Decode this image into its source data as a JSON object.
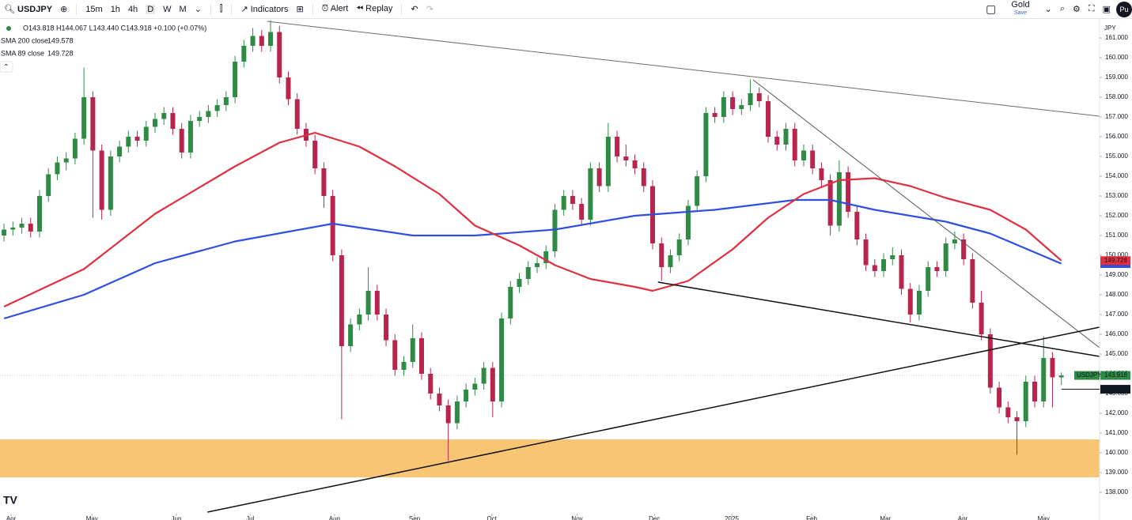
{
  "toolbar": {
    "symbol": "USDJPY",
    "intervals": [
      "15m",
      "1h",
      "4h",
      "D",
      "W",
      "M"
    ],
    "indicators": "Indicators",
    "alert": "Alert",
    "replay": "Replay",
    "layout_name": "Gold",
    "save": "Save",
    "avatar": "Pu"
  },
  "chart_data": {
    "type": "candlestick",
    "legend_ohlc": "O143.818 H144.067 L143.440 C143.918 +0.100 (+0.07%)",
    "currency": "JPY",
    "up_color": "#2e8b45",
    "down_color": "#b7254d",
    "candles": [
      [
        151.0,
        151.6,
        150.7,
        151.3
      ],
      [
        151.3,
        151.7,
        151.0,
        151.4
      ],
      [
        151.4,
        151.9,
        151.1,
        151.6
      ],
      [
        151.6,
        151.9,
        150.9,
        151.2
      ],
      [
        151.2,
        153.3,
        150.9,
        153.0
      ],
      [
        153.0,
        154.4,
        152.7,
        154.1
      ],
      [
        154.1,
        155.0,
        153.8,
        154.7
      ],
      [
        154.7,
        155.2,
        154.3,
        154.9
      ],
      [
        154.9,
        156.2,
        154.6,
        155.9
      ],
      [
        155.9,
        159.5,
        155.6,
        158.0
      ],
      [
        158.0,
        158.3,
        151.9,
        155.3
      ],
      [
        155.3,
        155.6,
        151.8,
        152.3
      ],
      [
        152.3,
        155.3,
        152.0,
        155.0
      ],
      [
        155.0,
        155.8,
        154.7,
        155.5
      ],
      [
        155.5,
        156.3,
        155.2,
        156.0
      ],
      [
        156.0,
        156.3,
        155.5,
        155.8
      ],
      [
        155.8,
        156.8,
        155.5,
        156.5
      ],
      [
        156.5,
        157.2,
        156.2,
        156.9
      ],
      [
        156.9,
        157.5,
        156.6,
        157.2
      ],
      [
        157.2,
        157.5,
        156.1,
        156.4
      ],
      [
        156.4,
        156.7,
        154.9,
        155.2
      ],
      [
        155.2,
        157.1,
        154.9,
        156.8
      ],
      [
        156.8,
        157.3,
        156.5,
        157.0
      ],
      [
        157.0,
        157.6,
        156.7,
        157.3
      ],
      [
        157.3,
        157.9,
        157.0,
        157.6
      ],
      [
        157.6,
        158.3,
        157.3,
        158.0
      ],
      [
        158.0,
        160.1,
        157.7,
        159.8
      ],
      [
        159.8,
        160.9,
        159.5,
        160.6
      ],
      [
        160.6,
        161.5,
        160.3,
        161.1
      ],
      [
        161.1,
        161.4,
        160.3,
        160.6
      ],
      [
        160.6,
        161.9,
        160.3,
        161.3
      ],
      [
        161.3,
        161.6,
        158.7,
        159.0
      ],
      [
        159.0,
        159.3,
        157.6,
        157.9
      ],
      [
        157.9,
        158.2,
        156.1,
        156.4
      ],
      [
        156.4,
        156.7,
        155.5,
        155.8
      ],
      [
        155.8,
        156.1,
        154.1,
        154.4
      ],
      [
        154.4,
        154.7,
        152.4,
        153.0
      ],
      [
        153.0,
        153.3,
        149.7,
        150.0
      ],
      [
        150.0,
        150.3,
        141.7,
        145.4
      ],
      [
        145.4,
        146.8,
        145.1,
        146.5
      ],
      [
        146.5,
        147.3,
        146.2,
        147.0
      ],
      [
        147.0,
        149.4,
        146.7,
        148.2
      ],
      [
        148.2,
        148.5,
        146.7,
        147.0
      ],
      [
        147.0,
        147.3,
        145.4,
        145.7
      ],
      [
        145.7,
        146.0,
        143.9,
        144.2
      ],
      [
        144.2,
        144.9,
        143.9,
        144.6
      ],
      [
        144.6,
        146.5,
        144.3,
        145.8
      ],
      [
        145.8,
        146.1,
        143.7,
        144.0
      ],
      [
        144.0,
        144.3,
        142.7,
        143.0
      ],
      [
        143.0,
        143.3,
        142.1,
        142.4
      ],
      [
        142.4,
        142.7,
        139.6,
        141.5
      ],
      [
        141.5,
        142.9,
        141.2,
        142.6
      ],
      [
        142.6,
        143.5,
        142.3,
        143.2
      ],
      [
        143.2,
        143.8,
        142.9,
        143.5
      ],
      [
        143.5,
        144.6,
        143.2,
        144.3
      ],
      [
        144.3,
        144.6,
        141.8,
        142.6
      ],
      [
        142.6,
        147.1,
        142.3,
        146.8
      ],
      [
        146.8,
        148.7,
        146.5,
        148.4
      ],
      [
        148.4,
        149.1,
        148.1,
        148.8
      ],
      [
        148.8,
        149.7,
        148.5,
        149.4
      ],
      [
        149.4,
        149.9,
        149.1,
        149.6
      ],
      [
        149.6,
        150.5,
        149.3,
        150.2
      ],
      [
        150.2,
        152.6,
        149.9,
        152.3
      ],
      [
        152.3,
        153.3,
        152.0,
        153.0
      ],
      [
        153.0,
        153.3,
        152.3,
        152.6
      ],
      [
        152.6,
        152.9,
        151.5,
        151.8
      ],
      [
        151.8,
        154.7,
        151.5,
        154.4
      ],
      [
        154.4,
        154.7,
        153.2,
        153.5
      ],
      [
        153.5,
        156.7,
        153.2,
        156.0
      ],
      [
        156.0,
        156.3,
        154.7,
        155.0
      ],
      [
        155.0,
        155.6,
        154.5,
        154.8
      ],
      [
        154.8,
        155.1,
        154.1,
        154.4
      ],
      [
        154.4,
        154.7,
        153.2,
        153.5
      ],
      [
        153.5,
        153.8,
        150.3,
        150.6
      ],
      [
        150.6,
        150.9,
        148.7,
        149.4
      ],
      [
        149.4,
        150.3,
        149.1,
        150.0
      ],
      [
        150.0,
        151.1,
        149.7,
        150.8
      ],
      [
        150.8,
        152.8,
        150.5,
        152.5
      ],
      [
        152.5,
        154.3,
        152.2,
        154.0
      ],
      [
        154.0,
        157.5,
        153.7,
        157.2
      ],
      [
        157.2,
        157.5,
        156.7,
        157.0
      ],
      [
        157.0,
        158.3,
        156.7,
        158.0
      ],
      [
        158.0,
        158.3,
        157.1,
        157.4
      ],
      [
        157.4,
        157.9,
        157.1,
        157.6
      ],
      [
        157.6,
        158.9,
        157.3,
        158.2
      ],
      [
        158.2,
        158.5,
        157.5,
        157.8
      ],
      [
        157.8,
        158.1,
        155.7,
        156.0
      ],
      [
        156.0,
        156.3,
        155.3,
        155.6
      ],
      [
        155.6,
        156.7,
        155.3,
        156.4
      ],
      [
        156.4,
        156.7,
        154.5,
        154.8
      ],
      [
        154.8,
        155.6,
        154.5,
        155.3
      ],
      [
        155.3,
        155.6,
        154.1,
        154.4
      ],
      [
        154.4,
        154.7,
        153.5,
        153.8
      ],
      [
        153.8,
        154.1,
        151.0,
        151.5
      ],
      [
        151.5,
        154.8,
        151.2,
        154.2
      ],
      [
        154.2,
        154.5,
        151.9,
        152.2
      ],
      [
        152.2,
        152.5,
        150.5,
        150.8
      ],
      [
        150.8,
        151.1,
        149.2,
        149.5
      ],
      [
        149.5,
        149.8,
        148.9,
        149.2
      ],
      [
        149.2,
        150.1,
        148.9,
        149.8
      ],
      [
        149.8,
        150.4,
        149.5,
        150.0
      ],
      [
        150.0,
        150.3,
        148.0,
        148.3
      ],
      [
        148.3,
        148.6,
        146.6,
        147.0
      ],
      [
        147.0,
        148.5,
        146.7,
        148.2
      ],
      [
        148.2,
        149.7,
        147.9,
        149.4
      ],
      [
        149.4,
        149.7,
        148.9,
        149.2
      ],
      [
        149.2,
        150.9,
        148.9,
        150.6
      ],
      [
        150.6,
        151.2,
        150.3,
        150.8
      ],
      [
        150.8,
        151.1,
        149.5,
        149.8
      ],
      [
        149.8,
        150.1,
        147.3,
        147.6
      ],
      [
        147.6,
        148.2,
        145.7,
        146.0
      ],
      [
        146.0,
        146.3,
        143.0,
        143.3
      ],
      [
        143.3,
        143.6,
        142.0,
        142.3
      ],
      [
        142.3,
        142.6,
        141.5,
        141.8
      ],
      [
        141.8,
        142.1,
        139.9,
        141.6
      ],
      [
        141.6,
        143.9,
        141.3,
        143.6
      ],
      [
        143.6,
        143.9,
        142.3,
        142.6
      ],
      [
        142.6,
        145.9,
        142.3,
        144.8
      ],
      [
        144.8,
        145.1,
        142.3,
        143.82
      ],
      [
        143.818,
        144.067,
        143.44,
        143.918
      ]
    ],
    "series": [
      {
        "name": "SMA 200 close",
        "color": "#2e4fe0",
        "x": [
          0,
          9,
          17,
          26,
          37,
          46,
          53,
          62,
          71,
          80,
          89,
          93,
          98,
          106,
          111,
          119
        ],
        "values": [
          146.8,
          148.0,
          149.6,
          150.7,
          151.6,
          151.0,
          151.0,
          151.3,
          152.0,
          152.3,
          152.8,
          152.8,
          152.3,
          151.7,
          151.1,
          149.578
        ]
      },
      {
        "name": "SMA 89 close",
        "color": "#e0303f",
        "x": [
          0,
          9,
          17,
          26,
          31,
          35,
          40,
          44,
          49,
          53,
          58,
          62,
          66,
          71,
          73,
          77,
          82,
          86,
          90,
          94,
          98,
          102,
          106,
          111,
          115,
          119
        ],
        "values": [
          147.4,
          149.3,
          152.1,
          154.5,
          155.7,
          156.2,
          155.5,
          154.5,
          153.1,
          151.5,
          150.5,
          149.5,
          148.8,
          148.4,
          148.2,
          148.7,
          150.3,
          151.9,
          153.1,
          153.8,
          153.9,
          153.5,
          152.9,
          152.3,
          151.3,
          149.728
        ]
      }
    ],
    "last_price": {
      "label": "USDJPY",
      "value": 143.918,
      "color": "#2e8b45"
    },
    "marked_price": 143.218,
    "zone": {
      "ylim": [
        138.76,
        140.68
      ],
      "color": "#f7c574"
    },
    "trend_lines": [
      {
        "x": [
          29.6,
          123.3
        ],
        "y": [
          161.84,
          157.04
        ],
        "color": "#6b6b6b",
        "width": 1
      },
      {
        "x": [
          84.3,
          123.3
        ],
        "y": [
          158.88,
          145.32
        ],
        "color": "#555555",
        "width": 1
      },
      {
        "x": [
          73.6,
          123.3
        ],
        "y": [
          148.64,
          144.88
        ],
        "color": "#111111",
        "width": 1.5
      },
      {
        "x": [
          22.9,
          123.3
        ],
        "y": [
          137.0,
          146.36
        ],
        "color": "#111111",
        "width": 1.5
      }
    ],
    "xlim": [
      -0.45,
      123.3
    ],
    "ylim": [
      137.0,
      161.96
    ],
    "yticks": [
      {
        "value": 138,
        "label": "138.000"
      },
      {
        "value": 139,
        "label": "139.000"
      },
      {
        "value": 140,
        "label": "140.000"
      },
      {
        "value": 141,
        "label": "141.000"
      },
      {
        "value": 142,
        "label": "142.000"
      },
      {
        "value": 143,
        "label": "143.000"
      },
      {
        "value": 144,
        "label": "144.000"
      },
      {
        "value": 145,
        "label": "145.000"
      },
      {
        "value": 146,
        "label": "146.000"
      },
      {
        "value": 147,
        "label": "147.000"
      },
      {
        "value": 148,
        "label": "148.000"
      },
      {
        "value": 149,
        "label": "149.000"
      },
      {
        "value": 150,
        "label": "150.000"
      },
      {
        "value": 151,
        "label": "151.000"
      },
      {
        "value": 152,
        "label": "152.000"
      },
      {
        "value": 153,
        "label": "153.000"
      },
      {
        "value": 154,
        "label": "154.000"
      },
      {
        "value": 155,
        "label": "155.000"
      },
      {
        "value": 156,
        "label": "156.000"
      },
      {
        "value": 157,
        "label": "157.000"
      },
      {
        "value": 158,
        "label": "158.000"
      },
      {
        "value": 159,
        "label": "159.000"
      },
      {
        "value": 160,
        "label": "160.000"
      },
      {
        "value": 161,
        "label": "161.000"
      }
    ],
    "xticks": [
      {
        "value": 0.8,
        "label": "Apr"
      },
      {
        "value": 9.9,
        "label": "May"
      },
      {
        "value": 19.4,
        "label": "Jun"
      },
      {
        "value": 27.7,
        "label": "Jul"
      },
      {
        "value": 37.2,
        "label": "Aug"
      },
      {
        "value": 46.2,
        "label": "Sep"
      },
      {
        "value": 54.9,
        "label": "Oct"
      },
      {
        "value": 64.5,
        "label": "Nov"
      },
      {
        "value": 73.2,
        "label": "Dec"
      },
      {
        "value": 81.9,
        "label": "2025"
      },
      {
        "value": 90.9,
        "label": "Feb"
      },
      {
        "value": 99.2,
        "label": "Mar"
      },
      {
        "value": 107.9,
        "label": "Apr"
      },
      {
        "value": 117.0,
        "label": "May"
      }
    ]
  }
}
